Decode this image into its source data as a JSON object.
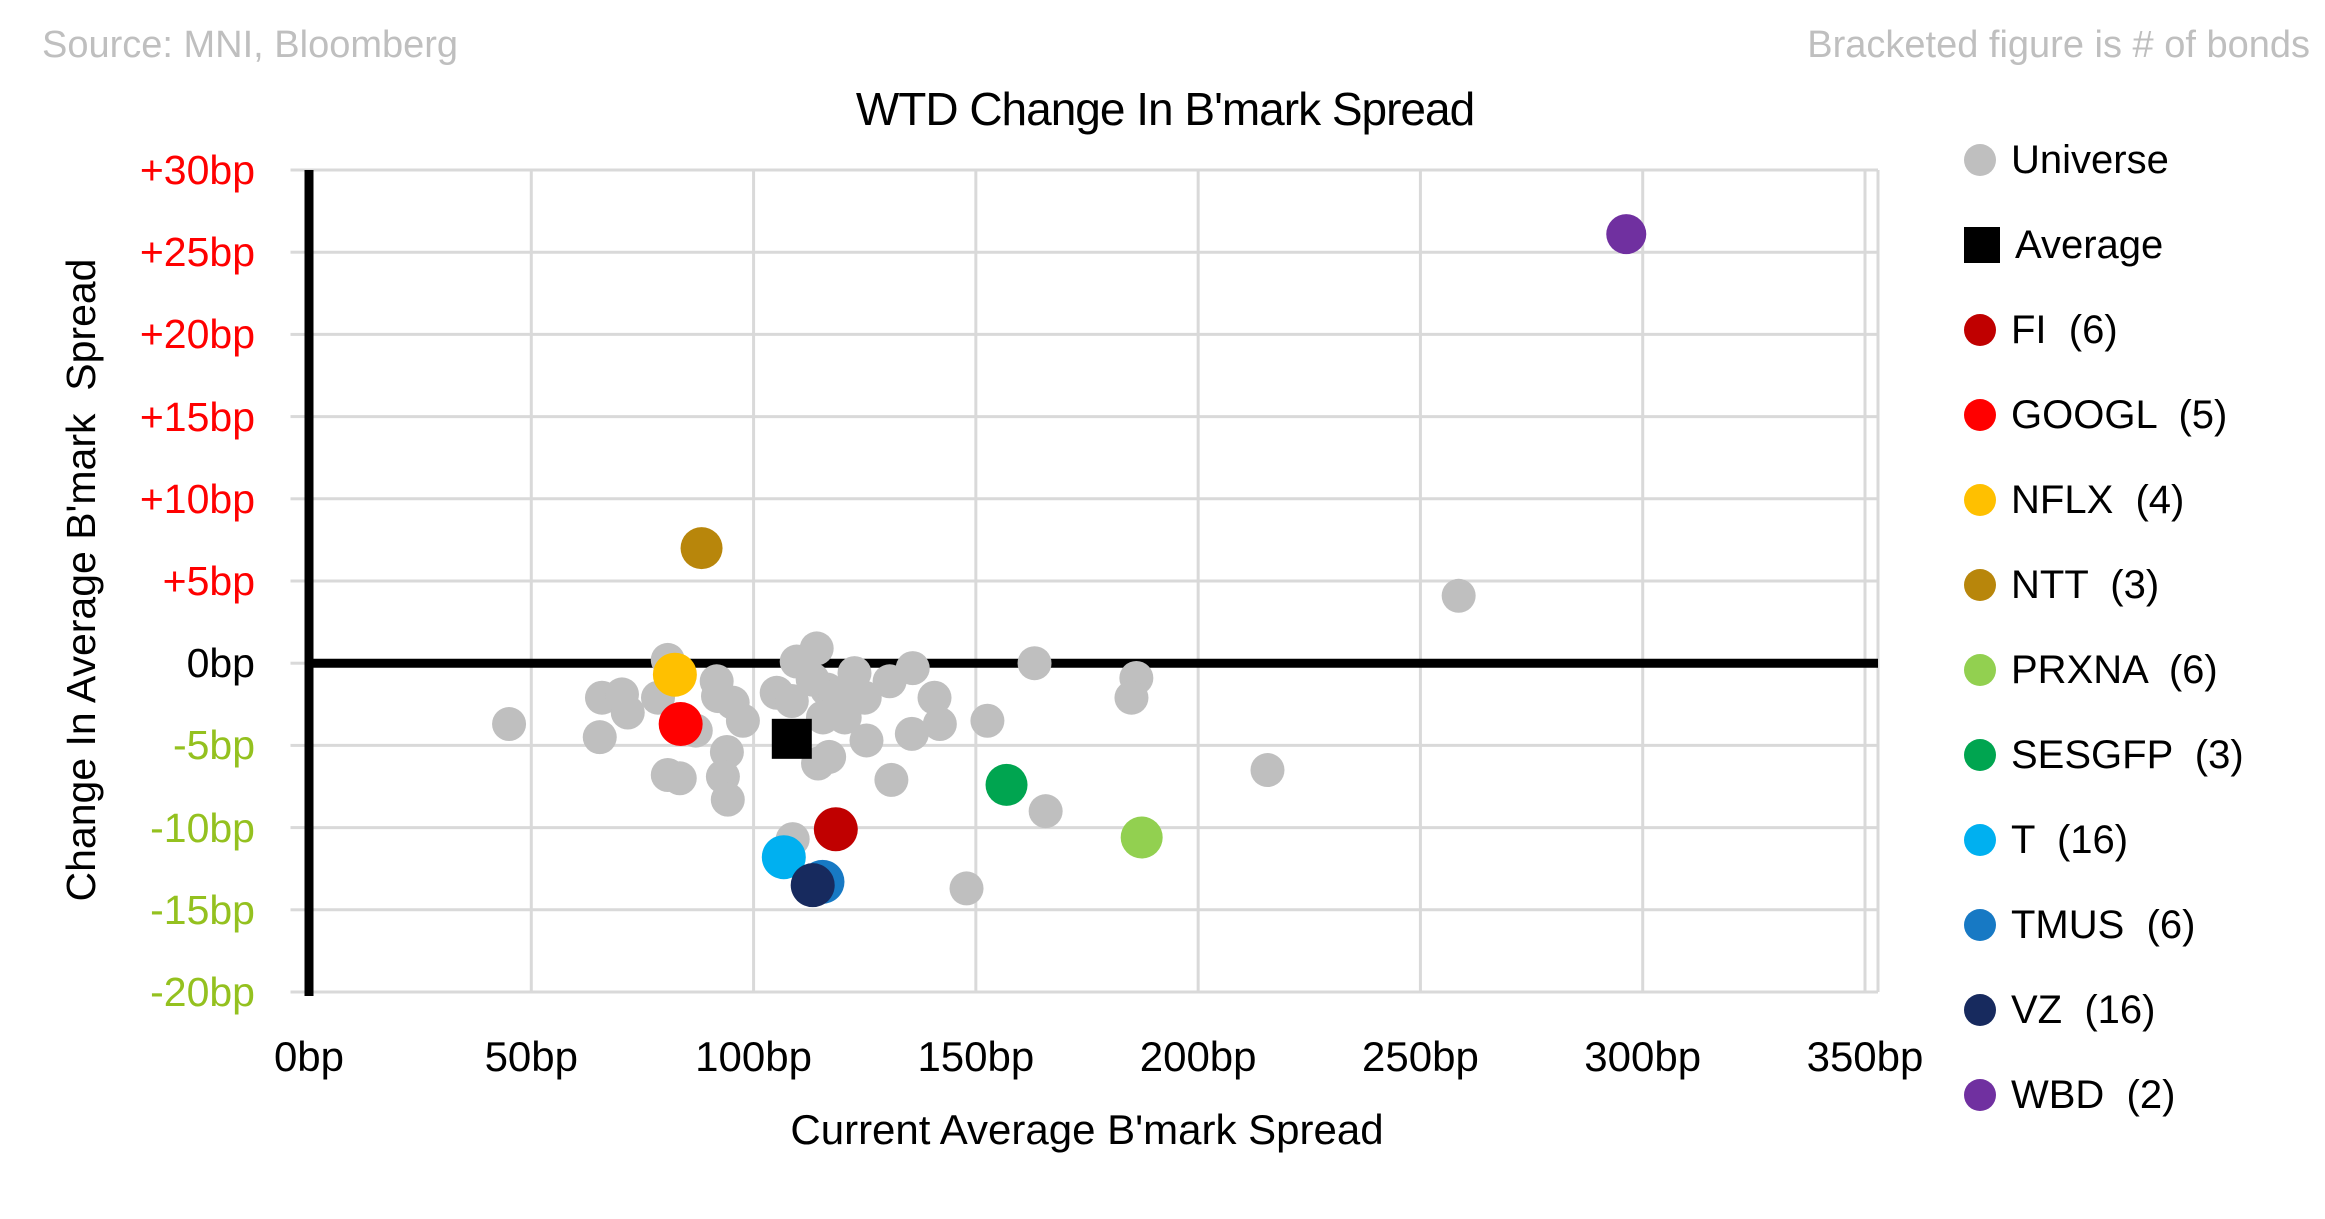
{
  "header": {
    "source_note": "Source: MNI, Bloomberg",
    "bracket_note": "Bracketed figure is # of bonds"
  },
  "chart_data": {
    "type": "scatter",
    "title": "WTD Change In B'mark Spread",
    "xlabel": "Current Average B'mark Spread",
    "ylabel": "Change In Average B'mark  Spread",
    "xlim": [
      0,
      350
    ],
    "ylim": [
      -20,
      30
    ],
    "grid": true,
    "legend_position": "right",
    "colors": {
      "grid": "#d9d9d9",
      "axis": "#000000",
      "zero_line": "#000000",
      "positive_tick": "#ff0000",
      "zero_tick": "#000000",
      "negative_tick": "#94c11f"
    },
    "x_ticks": [
      {
        "value": 0,
        "label": "0bp"
      },
      {
        "value": 50,
        "label": "50bp"
      },
      {
        "value": 100,
        "label": "100bp"
      },
      {
        "value": 150,
        "label": "150bp"
      },
      {
        "value": 200,
        "label": "200bp"
      },
      {
        "value": 250,
        "label": "250bp"
      },
      {
        "value": 300,
        "label": "300bp"
      },
      {
        "value": 350,
        "label": "350bp"
      }
    ],
    "y_ticks": [
      {
        "value": 30,
        "label": "+30bp",
        "color": "#ff0000"
      },
      {
        "value": 25,
        "label": "+25bp",
        "color": "#ff0000"
      },
      {
        "value": 20,
        "label": "+20bp",
        "color": "#ff0000"
      },
      {
        "value": 15,
        "label": "+15bp",
        "color": "#ff0000"
      },
      {
        "value": 10,
        "label": "+10bp",
        "color": "#ff0000"
      },
      {
        "value": 5,
        "label": "+5bp",
        "color": "#ff0000"
      },
      {
        "value": 0,
        "label": "0bp",
        "color": "#000000"
      },
      {
        "value": -5,
        "label": "-5bp",
        "color": "#94c11f"
      },
      {
        "value": -10,
        "label": "-10bp",
        "color": "#94c11f"
      },
      {
        "value": -15,
        "label": "-15bp",
        "color": "#94c11f"
      },
      {
        "value": -20,
        "label": "-20bp",
        "color": "#94c11f"
      }
    ],
    "series": [
      {
        "id": "universe",
        "legend_label": "Universe",
        "color": "#bfbfbf",
        "marker": "circle",
        "size": 17,
        "points": [
          [
            45.0,
            -3.7
          ],
          [
            65.9,
            -2.1
          ],
          [
            70.4,
            -1.9
          ],
          [
            71.7,
            -3.0
          ],
          [
            65.4,
            -4.5
          ],
          [
            78.5,
            -2.1
          ],
          [
            80.7,
            0.2
          ],
          [
            87.0,
            -4.1
          ],
          [
            80.7,
            -6.8
          ],
          [
            83.4,
            -7.0
          ],
          [
            91.7,
            -1.1
          ],
          [
            92.0,
            -2.0
          ],
          [
            95.3,
            -2.4
          ],
          [
            97.6,
            -3.5
          ],
          [
            94.0,
            -5.4
          ],
          [
            93.1,
            -6.9
          ],
          [
            94.2,
            -8.3
          ],
          [
            105.2,
            -1.8
          ],
          [
            108.6,
            -2.3
          ],
          [
            109.7,
            0.1
          ],
          [
            114.2,
            0.9
          ],
          [
            113.3,
            -1.0
          ],
          [
            116.5,
            -1.6
          ],
          [
            118.3,
            -2.0
          ],
          [
            115.6,
            -3.3
          ],
          [
            120.5,
            -3.3
          ],
          [
            114.5,
            -6.1
          ],
          [
            117.0,
            -5.7
          ],
          [
            122.7,
            -0.6
          ],
          [
            125.0,
            -2.1
          ],
          [
            125.4,
            -4.7
          ],
          [
            130.6,
            -1.1
          ],
          [
            131.0,
            -7.1
          ],
          [
            108.8,
            -10.7
          ],
          [
            135.8,
            -0.3
          ],
          [
            140.7,
            -2.1
          ],
          [
            141.9,
            -3.7
          ],
          [
            152.6,
            -3.5
          ],
          [
            135.6,
            -4.3
          ],
          [
            163.2,
            0.0
          ],
          [
            186.1,
            -0.9
          ],
          [
            185.0,
            -2.1
          ],
          [
            165.7,
            -9.0
          ],
          [
            215.6,
            -6.5
          ],
          [
            147.9,
            -13.7
          ],
          [
            258.6,
            4.1
          ]
        ]
      },
      {
        "id": "average",
        "legend_label": "Average",
        "color": "#000000",
        "marker": "square",
        "size": 40,
        "points": [
          [
            108.6,
            -4.6
          ]
        ]
      },
      {
        "id": "fi",
        "legend_label": "FI  (6)",
        "color": "#c00000",
        "marker": "circle",
        "size": 22,
        "points": [
          [
            118.5,
            -10.1
          ]
        ]
      },
      {
        "id": "googl",
        "legend_label": "GOOGL  (5)",
        "color": "#ff0000",
        "marker": "circle",
        "size": 22,
        "points": [
          [
            83.6,
            -3.7
          ]
        ]
      },
      {
        "id": "nflx",
        "legend_label": "NFLX  (4)",
        "color": "#ffc000",
        "marker": "circle",
        "size": 22,
        "points": [
          [
            82.3,
            -0.7
          ]
        ]
      },
      {
        "id": "ntt",
        "legend_label": "NTT  (3)",
        "color": "#b8860b",
        "marker": "circle",
        "size": 21,
        "points": [
          [
            88.3,
            7.0
          ]
        ]
      },
      {
        "id": "prxna",
        "legend_label": "PRXNA  (6)",
        "color": "#92d050",
        "marker": "circle",
        "size": 21,
        "points": [
          [
            187.3,
            -10.6
          ]
        ]
      },
      {
        "id": "sesgfp",
        "legend_label": "SESGFP  (3)",
        "color": "#00a550",
        "marker": "circle",
        "size": 21,
        "points": [
          [
            156.9,
            -7.4
          ]
        ]
      },
      {
        "id": "t",
        "legend_label": "T  (16)",
        "color": "#00b0f0",
        "marker": "circle",
        "size": 22,
        "points": [
          [
            106.8,
            -11.8
          ]
        ]
      },
      {
        "id": "tmus",
        "legend_label": "TMUS  (6)",
        "color": "#1779c4",
        "marker": "circle",
        "size": 22,
        "points": [
          [
            115.5,
            -13.3
          ]
        ]
      },
      {
        "id": "vz",
        "legend_label": "VZ  (16)",
        "color": "#172a5e",
        "marker": "circle",
        "size": 22,
        "points": [
          [
            113.3,
            -13.5
          ]
        ]
      },
      {
        "id": "wbd",
        "legend_label": "WBD  (2)",
        "color": "#7030a0",
        "marker": "circle",
        "size": 20,
        "points": [
          [
            296.3,
            26.1
          ]
        ]
      }
    ]
  }
}
